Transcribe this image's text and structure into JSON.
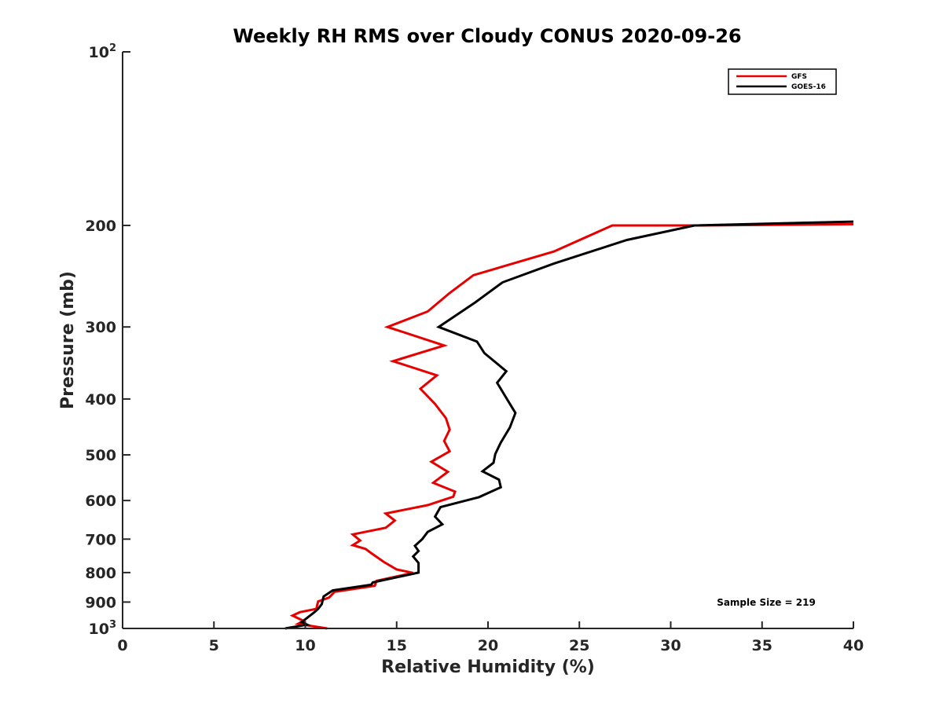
{
  "chart_data": {
    "type": "line",
    "title": "Weekly RH RMS over Cloudy CONUS 2020-09-26",
    "xlabel": "Relative Humidity (%)",
    "ylabel": "Pressure (mb)",
    "xlim": [
      0,
      40
    ],
    "ylim": [
      100,
      1000
    ],
    "yscale": "log",
    "y_reversed": true,
    "x_ticks": [
      "0",
      "5",
      "10",
      "15",
      "20",
      "25",
      "30",
      "35",
      "40"
    ],
    "y_ticks": [
      {
        "value": 100,
        "base": "10",
        "exp": "2"
      },
      {
        "value": 200,
        "label": "200"
      },
      {
        "value": 300,
        "label": "300"
      },
      {
        "value": 400,
        "label": "400"
      },
      {
        "value": 500,
        "label": "500"
      },
      {
        "value": 600,
        "label": "600"
      },
      {
        "value": 700,
        "label": "700"
      },
      {
        "value": 800,
        "label": "800"
      },
      {
        "value": 900,
        "label": "900"
      },
      {
        "value": 1000,
        "base": "10",
        "exp": "3"
      }
    ],
    "legend_position": "top-right",
    "annotation": "Sample Size = 219",
    "series": [
      {
        "name": "GFS",
        "color": "#e60000",
        "points": [
          [
            40,
            199
          ],
          [
            31.3,
            200
          ],
          [
            26.8,
            200
          ],
          [
            23.6,
            222
          ],
          [
            19.2,
            244
          ],
          [
            17.9,
            262
          ],
          [
            16.7,
            282
          ],
          [
            14.5,
            300
          ],
          [
            17.6,
            323
          ],
          [
            14.8,
            344
          ],
          [
            17.2,
            364
          ],
          [
            16.3,
            384
          ],
          [
            17.1,
            408
          ],
          [
            17.7,
            432
          ],
          [
            17.9,
            452
          ],
          [
            17.6,
            473
          ],
          [
            17.9,
            493
          ],
          [
            16.9,
            514
          ],
          [
            17.8,
            535
          ],
          [
            17.0,
            559
          ],
          [
            18.2,
            579
          ],
          [
            18.1,
            591
          ],
          [
            16.7,
            611
          ],
          [
            14.4,
            632
          ],
          [
            14.9,
            650
          ],
          [
            14.4,
            669
          ],
          [
            12.6,
            687
          ],
          [
            13.0,
            704
          ],
          [
            12.6,
            717
          ],
          [
            13.3,
            728
          ],
          [
            13.6,
            740
          ],
          [
            14.3,
            767
          ],
          [
            15.0,
            790
          ],
          [
            15.9,
            801
          ],
          [
            13.9,
            827
          ],
          [
            13.8,
            843
          ],
          [
            11.6,
            864
          ],
          [
            11.3,
            884
          ],
          [
            10.7,
            898
          ],
          [
            10.6,
            925
          ],
          [
            9.7,
            937
          ],
          [
            9.3,
            950
          ],
          [
            9.9,
            970
          ],
          [
            9.6,
            982
          ],
          [
            11.2,
            1000
          ]
        ]
      },
      {
        "name": "GOES-16",
        "color": "#000000",
        "points": [
          [
            40,
            197
          ],
          [
            31.3,
            200
          ],
          [
            27.6,
            212
          ],
          [
            23.6,
            233
          ],
          [
            20.8,
            251
          ],
          [
            19.3,
            272
          ],
          [
            17.3,
            300
          ],
          [
            19.4,
            318
          ],
          [
            19.8,
            333
          ],
          [
            21.0,
            358
          ],
          [
            20.5,
            375
          ],
          [
            21.2,
            408
          ],
          [
            21.5,
            423
          ],
          [
            21.2,
            448
          ],
          [
            20.7,
            476
          ],
          [
            20.4,
            498
          ],
          [
            20.3,
            516
          ],
          [
            19.7,
            534
          ],
          [
            20.6,
            552
          ],
          [
            20.7,
            569
          ],
          [
            19.5,
            592
          ],
          [
            17.4,
            616
          ],
          [
            17.1,
            640
          ],
          [
            17.5,
            660
          ],
          [
            16.7,
            680
          ],
          [
            16.4,
            700
          ],
          [
            16.0,
            719
          ],
          [
            16.2,
            734
          ],
          [
            15.9,
            750
          ],
          [
            16.2,
            770
          ],
          [
            16.2,
            800
          ],
          [
            13.7,
            832
          ],
          [
            13.6,
            840
          ],
          [
            11.5,
            859
          ],
          [
            11.0,
            880
          ],
          [
            10.9,
            908
          ],
          [
            10.7,
            925
          ],
          [
            10.5,
            937
          ],
          [
            9.8,
            975
          ],
          [
            10.1,
            985
          ],
          [
            8.9,
            1000
          ]
        ]
      }
    ]
  }
}
